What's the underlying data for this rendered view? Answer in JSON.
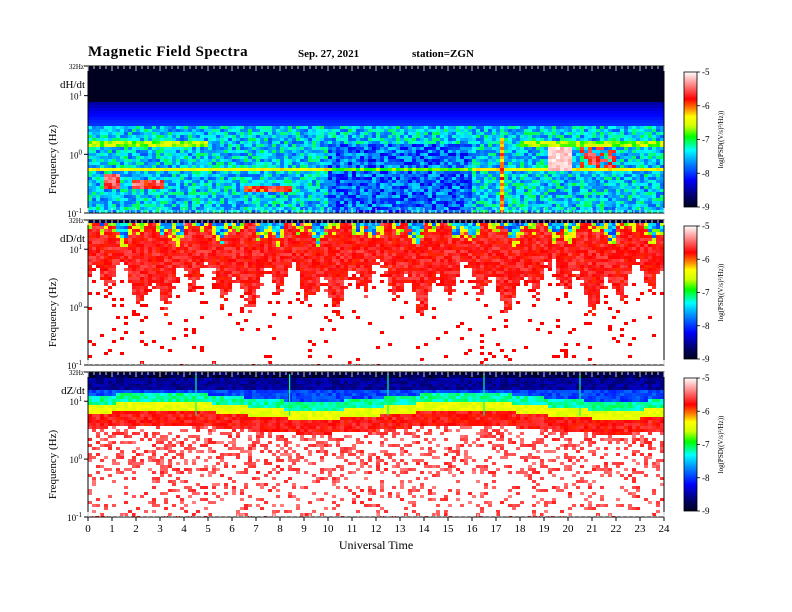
{
  "header": {
    "title": "Magnetic  Field  Spectra",
    "date": "Sep. 27, 2021",
    "station": "station=ZGN"
  },
  "colors": {
    "ramp": [
      "#000000",
      "#00008b",
      "#0000ff",
      "#0080ff",
      "#00ffff",
      "#00ff00",
      "#c8ff00",
      "#ffff00",
      "#ff8000",
      "#ff0000",
      "#ff6060",
      "#ffffff"
    ]
  },
  "chart_data": [
    {
      "type": "heatmap",
      "panel": "dH/dt",
      "ylabel": "Frequency  (Hz)",
      "xlabel": "",
      "y_ticks": [
        "32Hz",
        "10^1",
        "10^0",
        "10^-1"
      ],
      "xlim": [
        0,
        24
      ],
      "ylim_hz": [
        0.1,
        32
      ],
      "scale": "log",
      "colorbar": {
        "min": -9,
        "max": -5,
        "ticks": [
          "-5",
          "-6",
          "-7",
          "-8",
          "-9"
        ],
        "label": "log(PSD((V/s)²/Hz))"
      },
      "features": {
        "background_level": -7.5,
        "bright_bands_hz": [
          0.55,
          1.5
        ],
        "enhancements_ut": [
          1,
          2.5,
          7.5,
          17.2,
          19.5,
          20.5
        ]
      }
    },
    {
      "type": "heatmap",
      "panel": "dD/dt",
      "ylabel": "Frequency  (Hz)",
      "xlabel": "",
      "y_ticks": [
        "32Hz",
        "10^1",
        "10^0",
        "10^-1"
      ],
      "xlim": [
        0,
        24
      ],
      "ylim_hz": [
        0.1,
        32
      ],
      "scale": "log",
      "colorbar": {
        "min": -9,
        "max": -5,
        "ticks": [
          "-5",
          "-6",
          "-7",
          "-8",
          "-9"
        ],
        "label": "log(PSD((V/s)²/Hz))"
      },
      "features": {
        "red_floor_hz": [
          0.5,
          10
        ],
        "top_band_hz": [
          18,
          32
        ]
      }
    },
    {
      "type": "heatmap",
      "panel": "dZ/dt",
      "ylabel": "Frequency  (Hz)",
      "xlabel": "Universal Time",
      "y_ticks": [
        "32Hz",
        "10^1",
        "10^0",
        "10^-1"
      ],
      "x_ticks": [
        "0",
        "1",
        "2",
        "3",
        "4",
        "5",
        "6",
        "7",
        "8",
        "9",
        "10",
        "11",
        "12",
        "13",
        "14",
        "15",
        "16",
        "17",
        "18",
        "19",
        "20",
        "21",
        "22",
        "23",
        "24"
      ],
      "xlim": [
        0,
        24
      ],
      "ylim_hz": [
        0.1,
        32
      ],
      "scale": "log",
      "colorbar": {
        "min": -9,
        "max": -5,
        "ticks": [
          "-5",
          "-6",
          "-7",
          "-8",
          "-9"
        ],
        "label": "log(PSD((V/s)²/Hz))"
      },
      "features": {
        "band_edge_hz": 6,
        "spikes_ut": [
          4.5,
          8.4,
          12.5,
          16.5,
          20.5
        ]
      }
    }
  ]
}
